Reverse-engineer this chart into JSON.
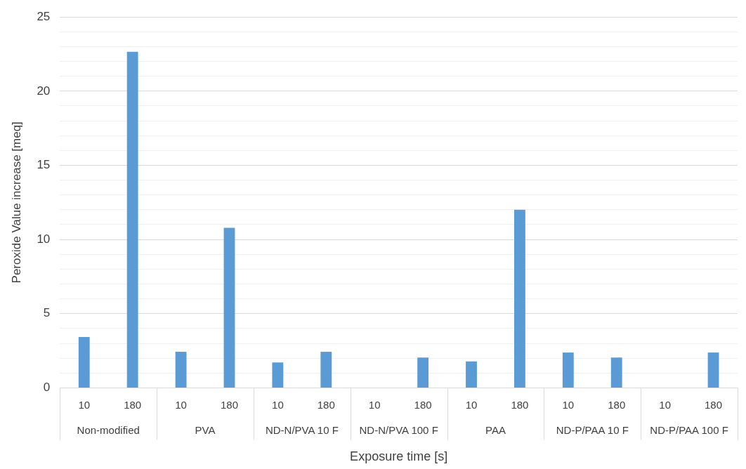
{
  "chart_data": {
    "type": "bar",
    "xlabel": "Exposure time [s]",
    "ylabel": "Peroxide Value increase [meq]",
    "categories": [
      "10",
      "180",
      "10",
      "180",
      "10",
      "180",
      "10",
      "180",
      "10",
      "180",
      "10",
      "180",
      "10",
      "180"
    ],
    "values": [
      3.43,
      22.66,
      2.43,
      10.79,
      1.71,
      2.43,
      0,
      2.04,
      1.78,
      12.01,
      2.38,
      2.04,
      0,
      2.38
    ],
    "color": "#5b9bd5",
    "annotations": [
      "Non-modified",
      "PVA",
      "ND-N/PVA 10 F",
      "ND-N/PVA 100 F",
      "PAA",
      "ND-P/PAA 10 F",
      "ND-P/PAA 100 F"
    ],
    "ylim": [
      0,
      25
    ],
    "yticks": [
      0,
      {
        "value": 1,
        "label": null
      },
      {
        "value": 2,
        "label": null
      },
      {
        "value": 3,
        "label": null
      },
      {
        "value": 4,
        "label": null
      },
      5,
      {
        "value": 6,
        "label": null
      },
      {
        "value": 7,
        "label": null
      },
      {
        "value": 8,
        "label": null
      },
      {
        "value": 9,
        "label": null
      },
      10,
      {
        "value": 11,
        "label": null
      },
      {
        "value": 12,
        "label": null
      },
      {
        "value": 13,
        "label": null
      },
      {
        "value": 14,
        "label": null
      },
      15,
      {
        "value": 16,
        "label": null
      },
      {
        "value": 17,
        "label": null
      },
      {
        "value": 18,
        "label": null
      },
      {
        "value": 19,
        "label": null
      },
      20,
      {
        "value": 21,
        "label": null
      },
      {
        "value": 22,
        "label": null
      },
      {
        "value": 23,
        "label": null
      },
      {
        "value": 24,
        "label": null
      },
      25
    ],
    "grid": "y",
    "legend": false
  }
}
